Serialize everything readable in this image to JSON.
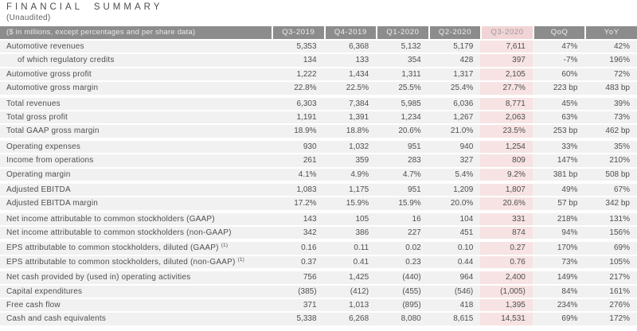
{
  "title": "FINANCIAL SUMMARY",
  "subtitle": "(Unaudited)",
  "colors": {
    "header_bg": "#8c8c8c",
    "header_text": "#eeeeee",
    "highlight_header_bg": "#f1d4d5",
    "highlight_cell_bg": "#f7e3e3",
    "row_bg": "#f1f1f1",
    "row_text": "#4f4f4f"
  },
  "table": {
    "header_label": "($ in millions, except percentages and per share data)",
    "columns": [
      "Q3-2019",
      "Q4-2019",
      "Q1-2020",
      "Q2-2020",
      "Q3-2020",
      "QoQ",
      "YoY"
    ],
    "highlight_column": "Q3-2020",
    "highlight_index": 4,
    "sections": [
      {
        "rows": [
          {
            "label": "Automotive revenues",
            "indent": false,
            "footnote": "",
            "values": [
              "5,353",
              "6,368",
              "5,132",
              "5,179",
              "7,611",
              "47%",
              "42%"
            ]
          },
          {
            "label": "of which regulatory credits",
            "indent": true,
            "footnote": "",
            "values": [
              "134",
              "133",
              "354",
              "428",
              "397",
              "-7%",
              "196%"
            ]
          },
          {
            "label": "Automotive gross profit",
            "indent": false,
            "footnote": "",
            "values": [
              "1,222",
              "1,434",
              "1,311",
              "1,317",
              "2,105",
              "60%",
              "72%"
            ]
          },
          {
            "label": "Automotive gross margin",
            "indent": false,
            "footnote": "",
            "values": [
              "22.8%",
              "22.5%",
              "25.5%",
              "25.4%",
              "27.7%",
              "223 bp",
              "483 bp"
            ]
          }
        ]
      },
      {
        "rows": [
          {
            "label": "Total revenues",
            "indent": false,
            "footnote": "",
            "values": [
              "6,303",
              "7,384",
              "5,985",
              "6,036",
              "8,771",
              "45%",
              "39%"
            ]
          },
          {
            "label": "Total gross profit",
            "indent": false,
            "footnote": "",
            "values": [
              "1,191",
              "1,391",
              "1,234",
              "1,267",
              "2,063",
              "63%",
              "73%"
            ]
          },
          {
            "label": "Total GAAP gross margin",
            "indent": false,
            "footnote": "",
            "values": [
              "18.9%",
              "18.8%",
              "20.6%",
              "21.0%",
              "23.5%",
              "253 bp",
              "462 bp"
            ]
          }
        ]
      },
      {
        "rows": [
          {
            "label": "Operating expenses",
            "indent": false,
            "footnote": "",
            "values": [
              "930",
              "1,032",
              "951",
              "940",
              "1,254",
              "33%",
              "35%"
            ]
          },
          {
            "label": "Income from operations",
            "indent": false,
            "footnote": "",
            "values": [
              "261",
              "359",
              "283",
              "327",
              "809",
              "147%",
              "210%"
            ]
          },
          {
            "label": "Operating margin",
            "indent": false,
            "footnote": "",
            "values": [
              "4.1%",
              "4.9%",
              "4.7%",
              "5.4%",
              "9.2%",
              "381 bp",
              "508 bp"
            ]
          }
        ]
      },
      {
        "rows": [
          {
            "label": "Adjusted EBITDA",
            "indent": false,
            "footnote": "",
            "values": [
              "1,083",
              "1,175",
              "951",
              "1,209",
              "1,807",
              "49%",
              "67%"
            ]
          },
          {
            "label": "Adjusted EBITDA margin",
            "indent": false,
            "footnote": "",
            "values": [
              "17.2%",
              "15.9%",
              "15.9%",
              "20.0%",
              "20.6%",
              "57 bp",
              "342 bp"
            ]
          }
        ]
      },
      {
        "rows": [
          {
            "label": "Net income attributable to common stockholders (GAAP)",
            "indent": false,
            "footnote": "",
            "values": [
              "143",
              "105",
              "16",
              "104",
              "331",
              "218%",
              "131%"
            ]
          },
          {
            "label": "Net income attributable to common stockholders (non-GAAP)",
            "indent": false,
            "footnote": "",
            "values": [
              "342",
              "386",
              "227",
              "451",
              "874",
              "94%",
              "156%"
            ]
          }
        ]
      },
      {
        "rows": [
          {
            "label": "EPS attributable to common stockholders, diluted (GAAP)",
            "indent": false,
            "footnote": "(1)",
            "values": [
              "0.16",
              "0.11",
              "0.02",
              "0.10",
              "0.27",
              "170%",
              "69%"
            ]
          },
          {
            "label": "EPS attributable to common stockholders, diluted (non-GAAP)",
            "indent": false,
            "footnote": "(1)",
            "values": [
              "0.37",
              "0.41",
              "0.23",
              "0.44",
              "0.76",
              "73%",
              "105%"
            ]
          }
        ]
      },
      {
        "rows": [
          {
            "label": "Net cash provided by (used in) operating activities",
            "indent": false,
            "footnote": "",
            "values": [
              "756",
              "1,425",
              "(440)",
              "964",
              "2,400",
              "149%",
              "217%"
            ]
          },
          {
            "label": "Capital expenditures",
            "indent": false,
            "footnote": "",
            "values": [
              "(385)",
              "(412)",
              "(455)",
              "(546)",
              "(1,005)",
              "84%",
              "161%"
            ]
          },
          {
            "label": "Free cash flow",
            "indent": false,
            "footnote": "",
            "values": [
              "371",
              "1,013",
              "(895)",
              "418",
              "1,395",
              "234%",
              "276%"
            ]
          },
          {
            "label": "Cash and cash equivalents",
            "indent": false,
            "footnote": "",
            "values": [
              "5,338",
              "6,268",
              "8,080",
              "8,615",
              "14,531",
              "69%",
              "172%"
            ]
          }
        ]
      }
    ]
  }
}
